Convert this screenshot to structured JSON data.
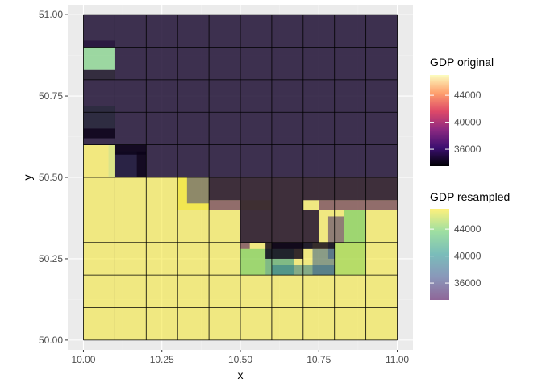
{
  "chart_data": {
    "type": "heatmap",
    "xlabel": "x",
    "ylabel": "y",
    "xlim": [
      9.95,
      11.05
    ],
    "ylim": [
      49.97,
      51.03
    ],
    "x_ticks": [
      10.0,
      10.25,
      10.5,
      10.75,
      11.0
    ],
    "x_tick_labels": [
      "10.00",
      "10.25",
      "10.50",
      "10.75",
      "11.00"
    ],
    "y_ticks": [
      50.0,
      50.25,
      50.5,
      50.75,
      51.0
    ],
    "y_tick_labels": [
      "50.00",
      "50.25",
      "50.50",
      "50.75",
      "51.00"
    ],
    "grid": true,
    "legend_position": "right",
    "cell_size": 0.1,
    "legends": [
      {
        "title": "GDP original",
        "breaks": [
          36000,
          40000,
          44000
        ],
        "break_labels": [
          "36000",
          "40000",
          "44000"
        ],
        "range": [
          33500,
          47000
        ],
        "colors": [
          "#000004",
          "#3b0f70",
          "#8c2981",
          "#de4968",
          "#fe9f6d",
          "#fcfdbf"
        ]
      },
      {
        "title": "GDP resampled",
        "breaks": [
          36000,
          40000,
          44000
        ],
        "break_labels": [
          "36000",
          "40000",
          "44000"
        ],
        "range": [
          33500,
          47000
        ],
        "colors": [
          "#440154",
          "#3b528b",
          "#21908c",
          "#5dc963",
          "#fde725"
        ]
      }
    ],
    "resampled_rows": [
      [
        46800,
        46800,
        46800,
        46800,
        46800,
        46800,
        46800,
        46800,
        46800,
        46800
      ],
      [
        46800,
        46800,
        46800,
        46800,
        46800,
        46800,
        46800,
        46800,
        46800,
        46800
      ],
      [
        46800,
        46800,
        46800,
        46800,
        46800,
        46800,
        46800,
        46800,
        46800,
        46800
      ],
      [
        46800,
        46800,
        46800,
        46800,
        46800,
        46800,
        46800,
        46800,
        46800,
        46800
      ],
      [
        46800,
        46800,
        46800,
        46800,
        46800,
        46800,
        46800,
        46800,
        46800,
        46800
      ]
    ],
    "resampled_cells": [
      {
        "x": 10.3,
        "y": 50.4,
        "w": 0.1,
        "h": 0.1,
        "value": 46800
      },
      {
        "x": 10.33,
        "y": 50.42,
        "w": 0.07,
        "h": 0.08,
        "value": 36000
      },
      {
        "x": 10.4,
        "y": 50.4,
        "w": 0.1,
        "h": 0.03,
        "value": 33800
      },
      {
        "x": 10.5,
        "y": 50.4,
        "w": 0.1,
        "h": 0.03,
        "value": 46800
      },
      {
        "x": 10.5,
        "y": 50.28,
        "w": 0.03,
        "h": 0.02,
        "value": 33800
      },
      {
        "x": 10.5,
        "y": 50.2,
        "w": 0.08,
        "h": 0.08,
        "value": 43500
      },
      {
        "x": 10.58,
        "y": 50.2,
        "w": 0.09,
        "h": 0.08,
        "value": 40500
      },
      {
        "x": 10.6,
        "y": 50.2,
        "w": 0.2,
        "h": 0.03,
        "value": 39000
      },
      {
        "x": 10.7,
        "y": 50.28,
        "w": 0.03,
        "h": 0.02,
        "value": 37500
      },
      {
        "x": 10.73,
        "y": 50.2,
        "w": 0.07,
        "h": 0.08,
        "value": 37500
      },
      {
        "x": 10.78,
        "y": 50.25,
        "w": 0.02,
        "h": 0.05,
        "value": 37500
      },
      {
        "x": 10.78,
        "y": 50.3,
        "w": 0.05,
        "h": 0.08,
        "value": 35000
      },
      {
        "x": 10.83,
        "y": 50.3,
        "w": 0.07,
        "h": 0.1,
        "value": 43500
      },
      {
        "x": 10.8,
        "y": 50.2,
        "w": 0.1,
        "h": 0.1,
        "value": 44500
      },
      {
        "x": 10.75,
        "y": 50.4,
        "w": 0.15,
        "h": 0.03,
        "value": 33800
      },
      {
        "x": 10.9,
        "y": 50.4,
        "w": 0.1,
        "h": 0.03,
        "value": 33800
      },
      {
        "x": 10.0,
        "y": 50.9,
        "w": 0.1,
        "h": 0.02,
        "value": 34500
      },
      {
        "x": 10.0,
        "y": 50.83,
        "w": 0.1,
        "h": 0.07,
        "value": 43500
      },
      {
        "x": 10.0,
        "y": 50.65,
        "w": 0.1,
        "h": 0.07,
        "value": 43500
      },
      {
        "x": 10.0,
        "y": 50.5,
        "w": 0.08,
        "h": 0.1,
        "value": 46900
      },
      {
        "x": 10.08,
        "y": 50.5,
        "w": 0.02,
        "h": 0.1,
        "value": 46000
      },
      {
        "x": 10.1,
        "y": 50.5,
        "w": 0.07,
        "h": 0.08,
        "value": 38500
      }
    ],
    "original_rows": [
      [
        null,
        null,
        null,
        null,
        null,
        null,
        null,
        null,
        null,
        null
      ],
      [
        null,
        null,
        null,
        null,
        null,
        null,
        null,
        null,
        null,
        null
      ],
      [
        null,
        null,
        null,
        null,
        null,
        null,
        null,
        null,
        null,
        null
      ],
      [
        null,
        null,
        null,
        null,
        null,
        null,
        null,
        null,
        null,
        null
      ],
      [
        null,
        null,
        null,
        null,
        null,
        null,
        null,
        null,
        null,
        null
      ],
      [
        null,
        null,
        null,
        null,
        null,
        null,
        null,
        null,
        null,
        null
      ],
      [
        null,
        null,
        null,
        null,
        null,
        null,
        null,
        null,
        null,
        null
      ],
      [
        null,
        null,
        null,
        null,
        null,
        null,
        null,
        null,
        null,
        null
      ],
      [
        null,
        null,
        null,
        null,
        null,
        null,
        null,
        null,
        null,
        null
      ],
      [
        null,
        null,
        null,
        null,
        null,
        null,
        null,
        null,
        null,
        null
      ]
    ],
    "original_cells": [
      {
        "x": 10.0,
        "y": 50.9,
        "w": 0.1,
        "h": 0.1,
        "value": 34500
      },
      {
        "x": 10.1,
        "y": 50.9,
        "w": 0.9,
        "h": 0.1,
        "value": 34500
      },
      {
        "x": 10.0,
        "y": 50.8,
        "w": 0.1,
        "h": 0.03,
        "value": 34000
      },
      {
        "x": 10.1,
        "y": 50.8,
        "w": 0.9,
        "h": 0.1,
        "value": 34500
      },
      {
        "x": 10.0,
        "y": 50.72,
        "w": 1.0,
        "h": 0.08,
        "value": 34500
      },
      {
        "x": 10.0,
        "y": 50.6,
        "w": 1.0,
        "h": 0.12,
        "value": 34500
      },
      {
        "x": 10.0,
        "y": 50.62,
        "w": 0.1,
        "h": 0.03,
        "value": 34000
      },
      {
        "x": 10.1,
        "y": 50.5,
        "w": 0.9,
        "h": 0.1,
        "value": 34500
      },
      {
        "x": 10.1,
        "y": 50.57,
        "w": 0.1,
        "h": 0.03,
        "value": 34000
      },
      {
        "x": 10.17,
        "y": 50.5,
        "w": 0.03,
        "h": 0.08,
        "value": 34000
      },
      {
        "x": 10.4,
        "y": 50.43,
        "w": 0.1,
        "h": 0.07,
        "value": 34500
      },
      {
        "x": 10.5,
        "y": 50.4,
        "w": 0.2,
        "h": 0.1,
        "value": 34500
      },
      {
        "x": 10.5,
        "y": 50.3,
        "w": 0.1,
        "h": 0.1,
        "value": 34500
      },
      {
        "x": 10.6,
        "y": 50.3,
        "w": 0.1,
        "h": 0.1,
        "value": 34500
      },
      {
        "x": 10.7,
        "y": 50.43,
        "w": 0.1,
        "h": 0.07,
        "value": 34500
      },
      {
        "x": 10.7,
        "y": 50.3,
        "w": 0.05,
        "h": 0.1,
        "value": 34500
      },
      {
        "x": 10.8,
        "y": 50.43,
        "w": 0.1,
        "h": 0.07,
        "value": 34500
      },
      {
        "x": 10.9,
        "y": 50.43,
        "w": 0.1,
        "h": 0.07,
        "value": 34500
      },
      {
        "x": 10.6,
        "y": 50.28,
        "w": 0.1,
        "h": 0.02,
        "value": 34000
      },
      {
        "x": 10.58,
        "y": 50.25,
        "w": 0.12,
        "h": 0.05,
        "value": 34000
      },
      {
        "x": 10.7,
        "y": 50.28,
        "w": 0.1,
        "h": 0.02,
        "value": 34000
      }
    ]
  },
  "colors": {
    "panel_bg": "#ebebeb",
    "grid_major": "#ffffff",
    "grid_minor": "#f2f2f2",
    "cell_border": "#000000"
  }
}
